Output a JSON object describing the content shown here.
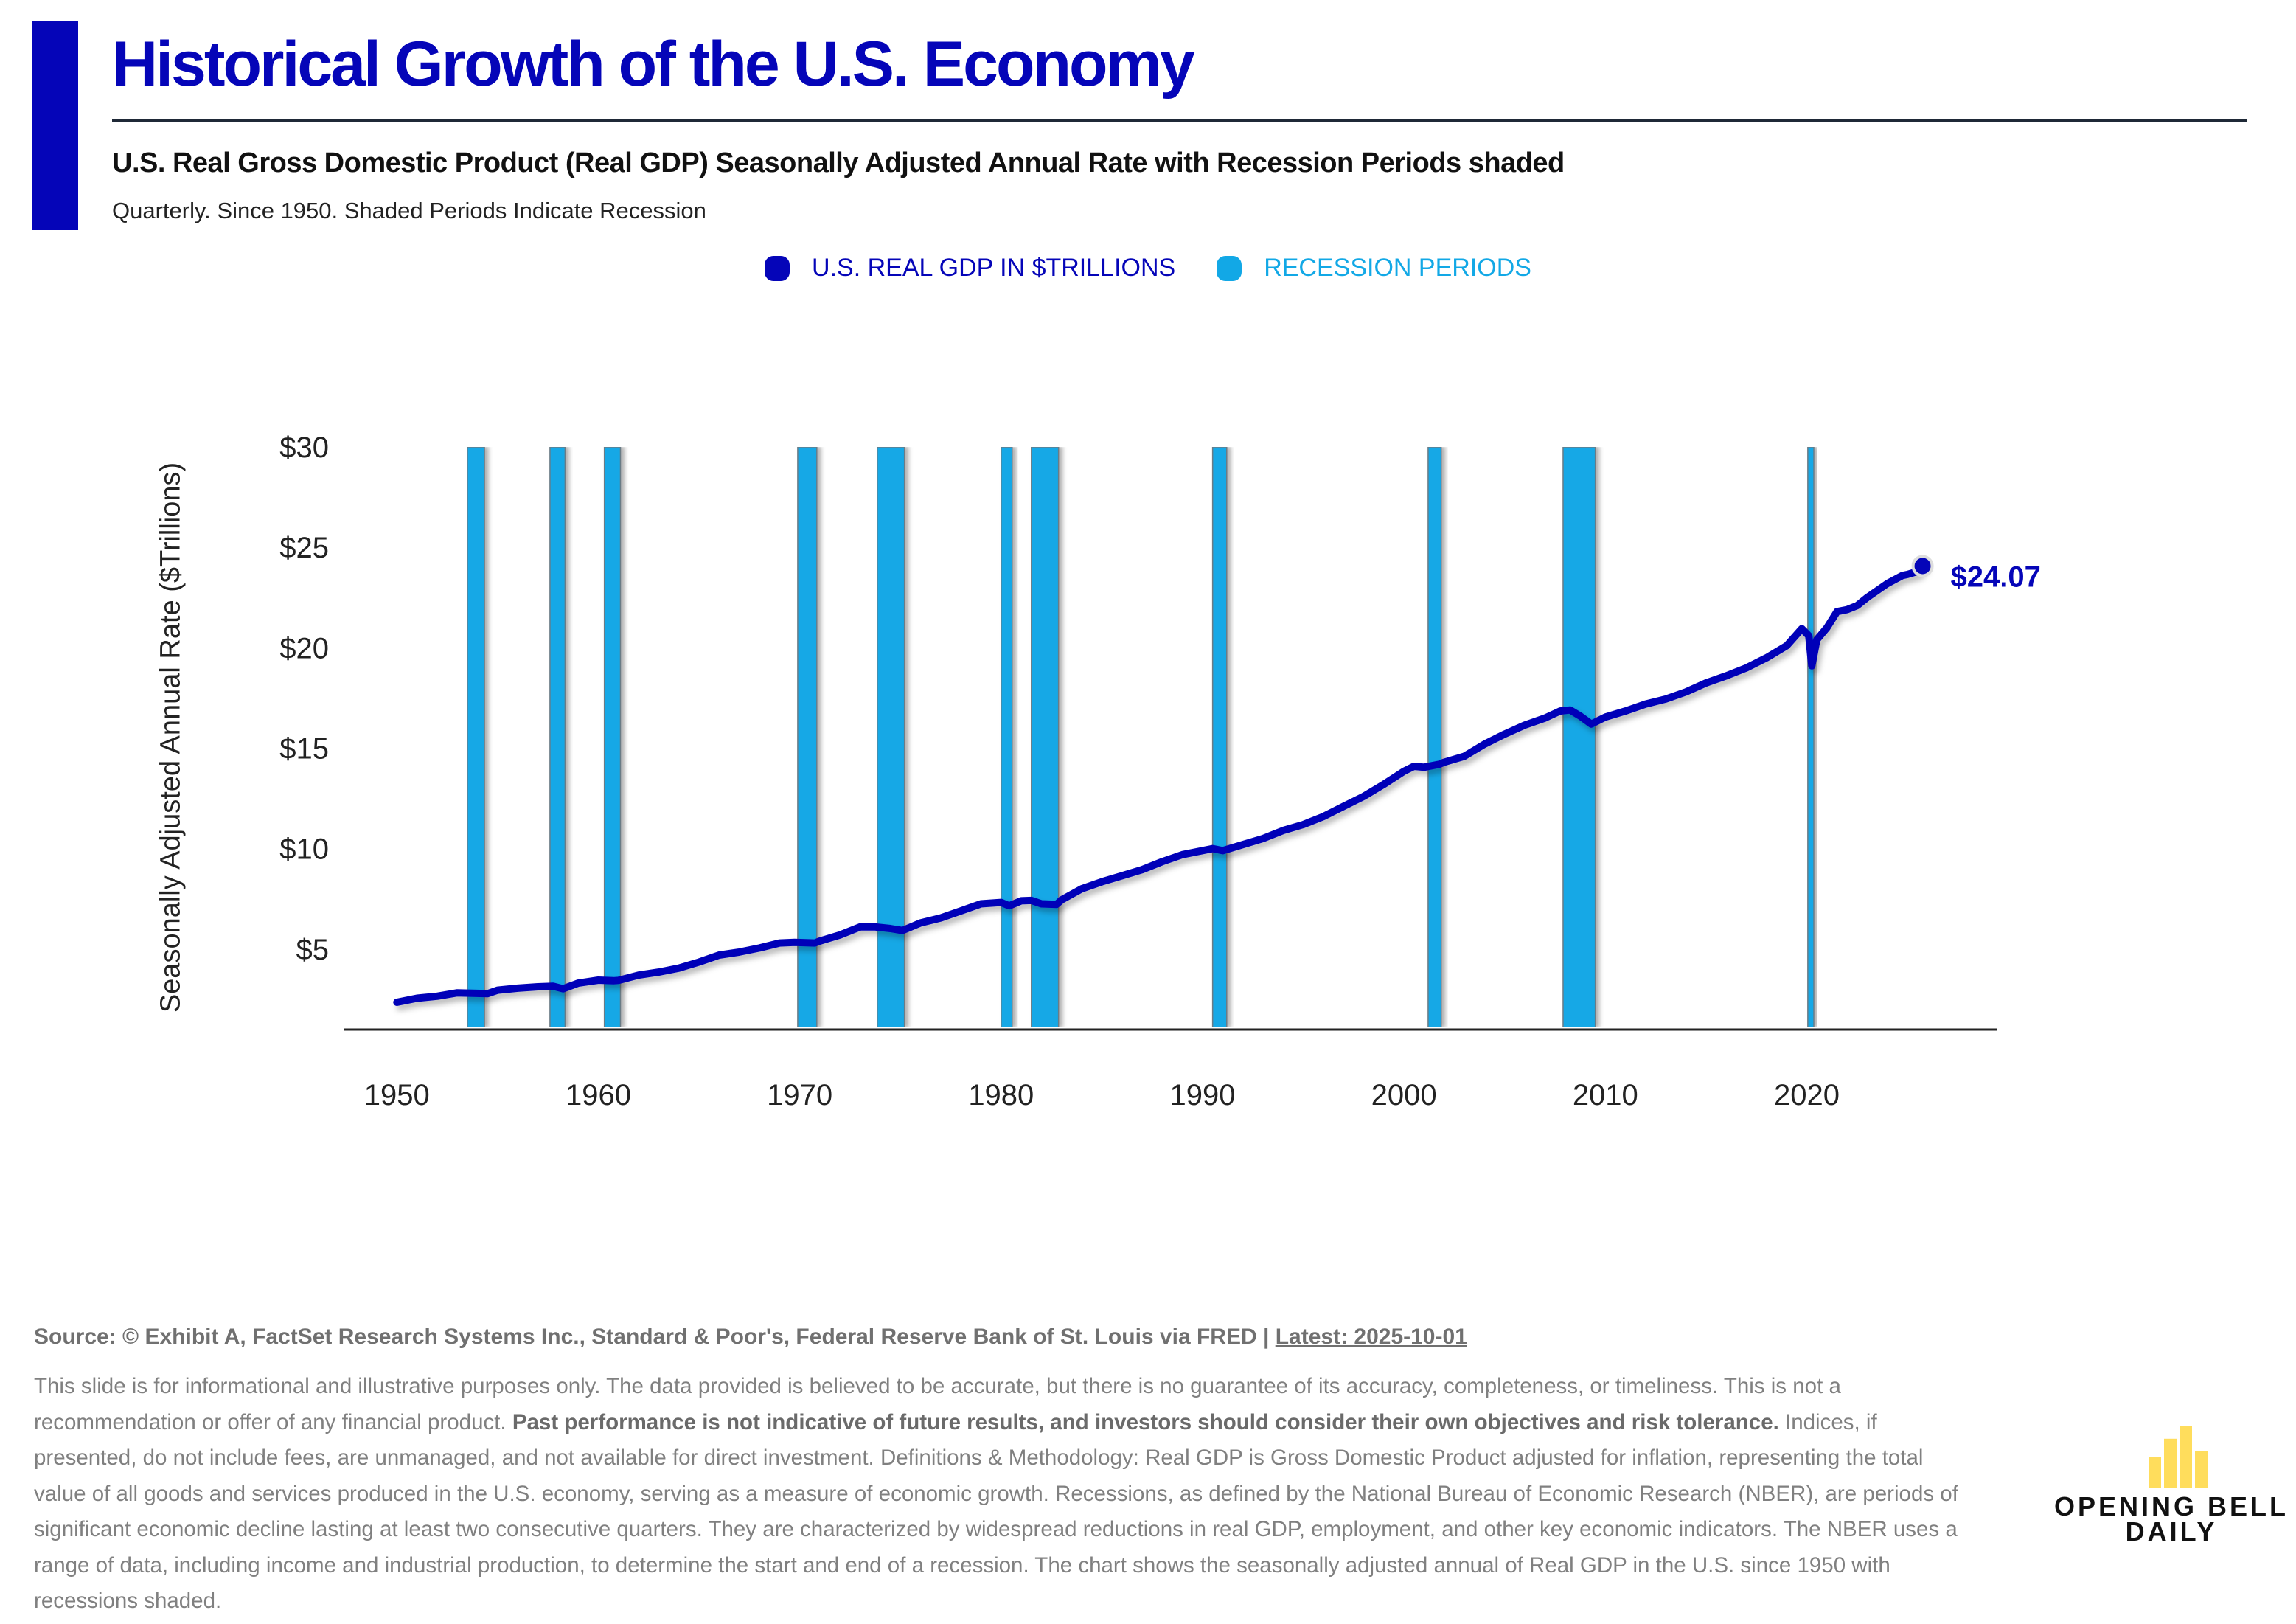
{
  "header": {
    "title": "Historical Growth of the U.S. Economy",
    "subtitle": "U.S. Real Gross Domestic Product (Real GDP) Seasonally Adjusted Annual Rate with Recession Periods shaded",
    "note": "Quarterly. Since 1950. Shaded Periods Indicate Recession"
  },
  "colors": {
    "brand": "#0505b8",
    "gdp_line": "#0505b8",
    "recession": "#12a8e6",
    "axis": "#222222",
    "logo_bars": "#ffdd5c"
  },
  "chart_data": {
    "type": "line",
    "title": "Historical Growth of the U.S. Economy",
    "xlabel": "",
    "ylabel": "Seasonally Adjusted Annual Rate ($Trillions)",
    "xlim": [
      1947.5,
      2029.5
    ],
    "ylim": [
      1.1,
      30
    ],
    "grid": false,
    "legend_position": "top-center",
    "legend": [
      {
        "label": "U.S. REAL GDP IN $TRILLIONS",
        "color": "#0505b8"
      },
      {
        "label": "RECESSION PERIODS",
        "color": "#12a8e6"
      }
    ],
    "x_ticks": [
      1950,
      1960,
      1970,
      1980,
      1990,
      2000,
      2010,
      2020
    ],
    "x_tick_labels": [
      "1950",
      "1960",
      "1970",
      "1980",
      "1990",
      "2000",
      "2010",
      "2020"
    ],
    "y_ticks": [
      5,
      10,
      15,
      20,
      25,
      30
    ],
    "y_tick_labels": [
      "$5",
      "$10",
      "$15",
      "$20",
      "$25",
      "$30"
    ],
    "series": [
      {
        "name": "U.S. Real GDP in $Trillions",
        "x": [
          1950,
          1951,
          1952,
          1953,
          1953.75,
          1954.5,
          1955,
          1956,
          1957,
          1957.75,
          1958.25,
          1959,
          1960,
          1960.75,
          1961,
          1962,
          1963,
          1964,
          1965,
          1966,
          1967,
          1968,
          1969,
          1969.75,
          1970.75,
          1971,
          1972,
          1973,
          1973.75,
          1974.5,
          1975.1,
          1976,
          1977,
          1978,
          1979,
          1980,
          1980.4,
          1981,
          1981.5,
          1982,
          1982.75,
          1983,
          1984,
          1985,
          1986,
          1987,
          1988,
          1989,
          1990.5,
          1991,
          1992,
          1993,
          1994,
          1995,
          1996,
          1997,
          1998,
          1999,
          2000,
          2000.5,
          2001,
          2001.75,
          2002,
          2003,
          2004,
          2005,
          2006,
          2007,
          2007.75,
          2008.25,
          2008.75,
          2009.3,
          2010,
          2011,
          2012,
          2013,
          2014,
          2015,
          2016,
          2017,
          2018,
          2019,
          2019.75,
          2020.1,
          2020.25,
          2020.5,
          2021,
          2021.5,
          2022,
          2022.5,
          2023,
          2024,
          2024.75,
          2025,
          2025.5,
          2025.75
        ],
        "values": [
          2.35,
          2.55,
          2.65,
          2.82,
          2.8,
          2.78,
          2.95,
          3.05,
          3.12,
          3.15,
          3.02,
          3.3,
          3.45,
          3.42,
          3.44,
          3.7,
          3.85,
          4.05,
          4.35,
          4.7,
          4.85,
          5.05,
          5.3,
          5.33,
          5.3,
          5.4,
          5.7,
          6.1,
          6.1,
          6.02,
          5.92,
          6.3,
          6.55,
          6.9,
          7.25,
          7.32,
          7.15,
          7.4,
          7.42,
          7.25,
          7.22,
          7.45,
          8.0,
          8.35,
          8.65,
          8.95,
          9.35,
          9.7,
          10.0,
          9.9,
          10.2,
          10.5,
          10.9,
          11.2,
          11.6,
          12.1,
          12.6,
          13.2,
          13.85,
          14.1,
          14.05,
          14.2,
          14.3,
          14.6,
          15.2,
          15.7,
          16.15,
          16.5,
          16.85,
          16.9,
          16.6,
          16.2,
          16.55,
          16.85,
          17.2,
          17.45,
          17.8,
          18.25,
          18.6,
          19.0,
          19.5,
          20.1,
          20.95,
          20.6,
          19.1,
          20.4,
          21.0,
          21.8,
          21.9,
          22.1,
          22.5,
          23.2,
          23.6,
          23.65,
          23.8,
          24.07
        ]
      }
    ],
    "recessions": [
      {
        "start": 1953.5,
        "end": 1954.35
      },
      {
        "start": 1957.6,
        "end": 1958.35
      },
      {
        "start": 1960.3,
        "end": 1961.1
      },
      {
        "start": 1969.9,
        "end": 1970.85
      },
      {
        "start": 1973.85,
        "end": 1975.2
      },
      {
        "start": 1980.0,
        "end": 1980.55
      },
      {
        "start": 1981.5,
        "end": 1982.85
      },
      {
        "start": 1990.5,
        "end": 1991.2
      },
      {
        "start": 2001.2,
        "end": 2001.85
      },
      {
        "start": 2007.9,
        "end": 2009.5
      },
      {
        "start": 2020.05,
        "end": 2020.35
      }
    ],
    "annotations": [
      {
        "label": "$24.07",
        "x": 2025.75,
        "value": 24.07
      }
    ]
  },
  "footer": {
    "source_prefix": "Source: © Exhibit A, FactSet Research Systems Inc., Standard & Poor's, Federal Reserve Bank of St. Louis via FRED | ",
    "latest": "Latest: 2025-10-01",
    "disclaimer_part1": "This slide is for informational and illustrative purposes only. The data provided is believed to be accurate, but there is no guarantee of its accuracy, completeness, or timeliness. This is not a recommendation or offer of any financial product. ",
    "disclaimer_bold": "Past performance is not indicative of future results, and investors should consider their own objectives and risk tolerance.",
    "disclaimer_part2": " Indices, if presented, do not include fees, are unmanaged, and not available for direct investment. Definitions & Methodology: Real GDP is Gross Domestic Product adjusted for inflation, representing the total value of all goods and services produced in the U.S. economy, serving as a measure of economic growth. Recessions, as defined by the National Bureau of Economic Research (NBER), are periods of significant economic decline lasting at least two consecutive quarters. They are characterized by widespread reductions in real GDP, employment, and other key economic indicators. The NBER uses a range of data, including income and industrial production, to determine the start and end of a recession. The chart shows the seasonally adjusted annual of Real GDP in the U.S. since 1950 with recessions shaded."
  },
  "logo": {
    "line1": "OPENING BELL",
    "line2": "DAILY",
    "bar_levels": [
      0.5,
      0.8,
      1.0,
      0.6
    ]
  }
}
